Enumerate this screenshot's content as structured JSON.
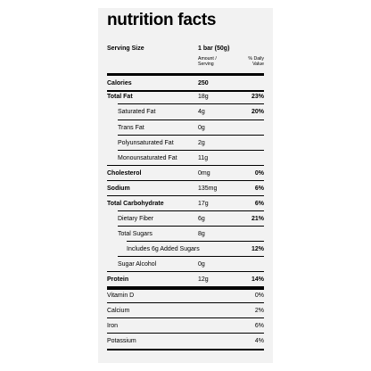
{
  "title": "nutrition facts",
  "serving": {
    "label": "Serving Size",
    "value": "1 bar (50g)"
  },
  "columns": {
    "amount": "Amount / Serving",
    "daily_value": "% Daily Value"
  },
  "rows": [
    {
      "name": "Calories",
      "amount": "250",
      "pct": ""
    },
    {
      "name": "Total Fat",
      "amount": "18g",
      "pct": "23%"
    },
    {
      "name": "Saturated Fat",
      "amount": "4g",
      "pct": "20%"
    },
    {
      "name": "Trans Fat",
      "amount": "0g",
      "pct": ""
    },
    {
      "name": "Polyunsaturated Fat",
      "amount": "2g",
      "pct": ""
    },
    {
      "name": "Monounsaturated Fat",
      "amount": "11g",
      "pct": ""
    },
    {
      "name": "Cholesterol",
      "amount": "0mg",
      "pct": "0%"
    },
    {
      "name": "Sodium",
      "amount": "135mg",
      "pct": "6%"
    },
    {
      "name": "Total Carbohydrate",
      "amount": "17g",
      "pct": "6%"
    },
    {
      "name": "Dietary Fiber",
      "amount": "6g",
      "pct": "21%"
    },
    {
      "name": "Total Sugars",
      "amount": "8g",
      "pct": ""
    },
    {
      "name": "Includes 6g Added Sugars",
      "amount": "",
      "pct": "12%"
    },
    {
      "name": "Sugar Alcohol",
      "amount": "0g",
      "pct": ""
    },
    {
      "name": "Protein",
      "amount": "12g",
      "pct": "14%"
    },
    {
      "name": "Vitamin D",
      "amount": "",
      "pct": "0%"
    },
    {
      "name": "Calcium",
      "amount": "",
      "pct": "2%"
    },
    {
      "name": "Iron",
      "amount": "",
      "pct": "6%"
    },
    {
      "name": "Potassium",
      "amount": "",
      "pct": "4%"
    }
  ]
}
